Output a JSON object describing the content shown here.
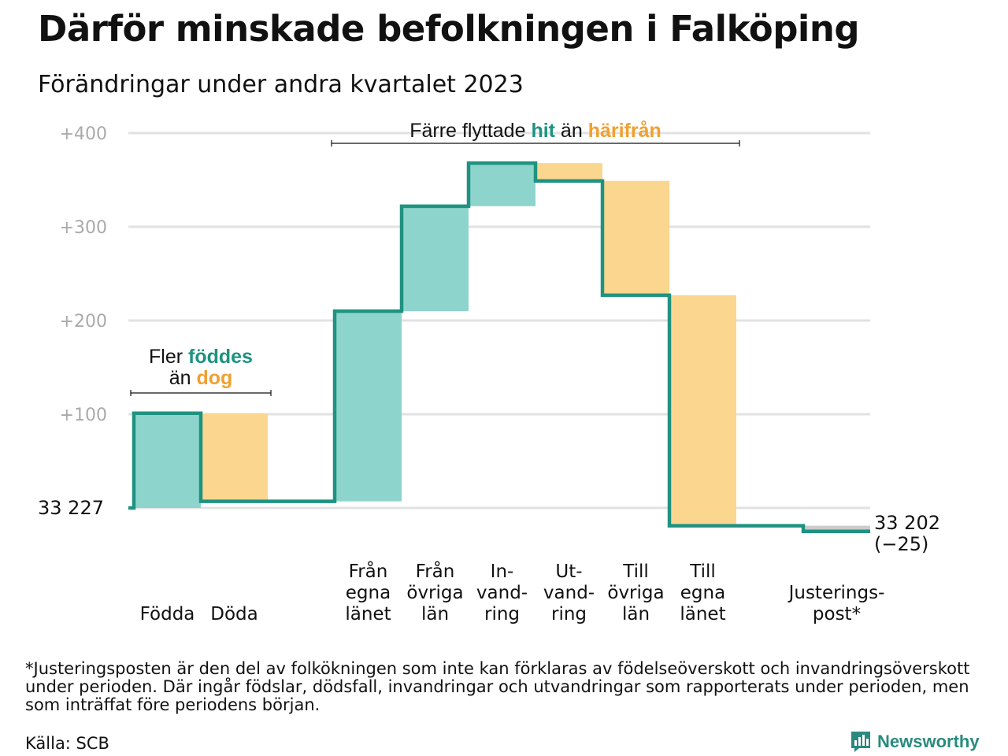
{
  "title": "Därför minskade befolkningen i Falköping",
  "subtitle": "Förändringar under andra kvartalet 2023",
  "footnote": "*Justeringsposten är den del av folkökningen som inte kan förklaras av födelseöverskott och invandringsöverskott under perioden. Där ingår födslar, dödsfall, invandringar och utvandringar som rapporterats under perioden, men som inträffat före periodens början.",
  "source": "Källa: SCB",
  "brand": "Newsworthy",
  "colors": {
    "inflow": "#8dd5cc",
    "outflow": "#fbd68e",
    "adjustment": "#cccccc",
    "line": "#1f9281",
    "inflow_text": "#1f9281",
    "outflow_text": "#f0a030",
    "grid": "#e2e2e2",
    "tick": "#aaaaaa"
  },
  "chart_data": {
    "type": "waterfall",
    "start_label": "33  227",
    "end_label": "33 202",
    "end_change_label": "(−25)",
    "y_ticks": [
      {
        "value": 100,
        "label": "+100"
      },
      {
        "value": 200,
        "label": "+200"
      },
      {
        "value": 300,
        "label": "+300"
      },
      {
        "value": 400,
        "label": "+400"
      }
    ],
    "ylim": [
      -30,
      400
    ],
    "steps": [
      {
        "label": "Födda",
        "change": 101,
        "kind": "inflow"
      },
      {
        "label": "Döda",
        "change": -94,
        "kind": "outflow"
      },
      {
        "label": "",
        "change": 0,
        "kind": "gap"
      },
      {
        "label": "Från\negna\nlänet",
        "change": 203,
        "kind": "inflow"
      },
      {
        "label": "Från\növriga\nlän",
        "change": 112,
        "kind": "inflow"
      },
      {
        "label": "In-\nvand-\nring",
        "change": 46,
        "kind": "inflow"
      },
      {
        "label": "Ut-\nvand-\nring",
        "change": -19,
        "kind": "outflow"
      },
      {
        "label": "Till\növriga\nlän",
        "change": -122,
        "kind": "outflow"
      },
      {
        "label": "Till\negna\nlänet",
        "change": -246,
        "kind": "outflow"
      },
      {
        "label": "",
        "change": 0,
        "kind": "gap"
      },
      {
        "label": "Justerings-\npost*",
        "change": -6,
        "kind": "adjustment"
      }
    ],
    "annotations": [
      {
        "text_parts": [
          {
            "text": "Fler ",
            "kind": "plain"
          },
          {
            "text": "föddes",
            "kind": "inflow"
          }
        ],
        "text_parts2": [
          {
            "text": "än ",
            "kind": "plain"
          },
          {
            "text": "dog",
            "kind": "outflow"
          }
        ],
        "span": [
          0,
          1
        ]
      },
      {
        "text_parts": [
          {
            "text": "Färre flyttade ",
            "kind": "plain"
          },
          {
            "text": "hit",
            "kind": "inflow"
          },
          {
            "text": " än ",
            "kind": "plain"
          },
          {
            "text": "härifrån",
            "kind": "outflow"
          }
        ],
        "span": [
          3,
          8
        ]
      }
    ]
  }
}
